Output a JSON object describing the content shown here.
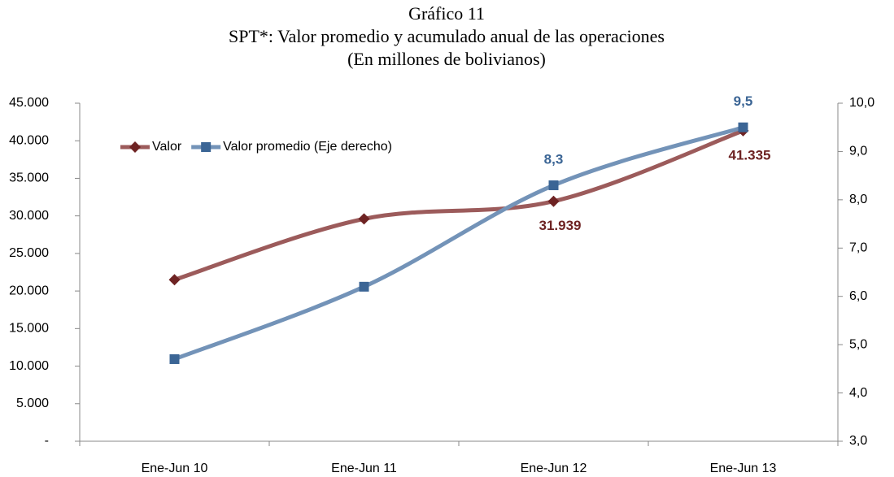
{
  "chart_data": {
    "type": "line",
    "title": [
      "Gráfico 11",
      "SPT*: Valor promedio y acumulado anual de las operaciones",
      "(En millones de bolivianos)"
    ],
    "categories": [
      "Ene-Jun 10",
      "Ene-Jun 11",
      "Ene-Jun 12",
      "Ene-Jun 13"
    ],
    "series": [
      {
        "name": "Valor",
        "color": "#9c5b5b",
        "marker_color": "#6e2323",
        "marker": "diamond",
        "values": [
          21500,
          29600,
          31939,
          41335
        ],
        "value_labels": [
          null,
          null,
          "31.939",
          "41.335"
        ]
      },
      {
        "name": "Valor promedio (Eje derecho)",
        "color": "#7393b8",
        "marker_color": "#3b6595",
        "marker": "square",
        "axis": "y2",
        "values": [
          4.7,
          6.2,
          8.3,
          9.5
        ],
        "value_labels": [
          null,
          null,
          "8,3",
          "9,5"
        ]
      }
    ],
    "ylim": [
      0,
      45000
    ],
    "yticks": [
      {
        "value": 0,
        "label": "-"
      },
      {
        "value": 5000,
        "label": "5.000"
      },
      {
        "value": 10000,
        "label": "10.000"
      },
      {
        "value": 15000,
        "label": "15.000"
      },
      {
        "value": 20000,
        "label": "20.000"
      },
      {
        "value": 25000,
        "label": "25.000"
      },
      {
        "value": 30000,
        "label": "30.000"
      },
      {
        "value": 35000,
        "label": "35.000"
      },
      {
        "value": 40000,
        "label": "40.000"
      },
      {
        "value": 45000,
        "label": "45.000"
      }
    ],
    "y2lim": [
      3,
      10
    ],
    "y2ticks": [
      {
        "value": 3,
        "label": "3,0"
      },
      {
        "value": 4,
        "label": "4,0"
      },
      {
        "value": 5,
        "label": "5,0"
      },
      {
        "value": 6,
        "label": "6,0"
      },
      {
        "value": 7,
        "label": "7,0"
      },
      {
        "value": 8,
        "label": "8,0"
      },
      {
        "value": 9,
        "label": "9,0"
      },
      {
        "value": 10,
        "label": "10,0"
      }
    ],
    "legend": "upper left",
    "smooth": true
  }
}
